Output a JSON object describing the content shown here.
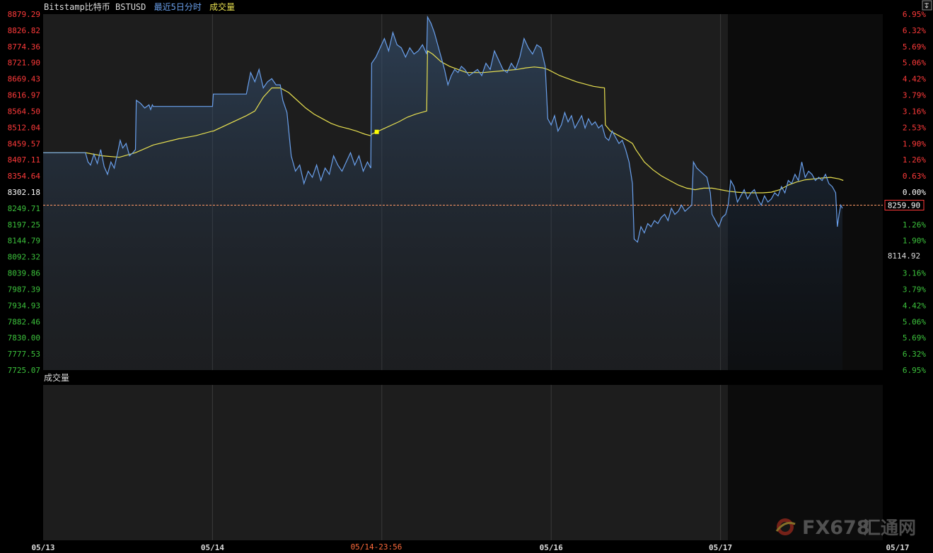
{
  "header": {
    "symbol_label": "Bitstamp比特币 BSTUSD",
    "period_label": "最近5日分时",
    "indicator_label": "成交量"
  },
  "volume_panel": {
    "title": "成交量"
  },
  "current_price_tag": "8259.90",
  "low_marker_label": "8114.92",
  "crosshair_time_label": "05/14-23:56",
  "watermark": {
    "brand": "FX678",
    "site": "汇通网"
  },
  "colors": {
    "up": "#ff3a3a",
    "down": "#3cc23c",
    "neutral": "#ffffff",
    "price_line": "#6aa0ec",
    "avg_line": "#e8e050",
    "ref_line": "#ff9966",
    "marker": "#ffff00"
  },
  "chart_data": {
    "type": "line",
    "title": "Bitstamp比特币 BSTUSD",
    "y_axis_left": [
      "8879.29",
      "8826.82",
      "8774.36",
      "8721.90",
      "8669.43",
      "8616.97",
      "8564.50",
      "8512.04",
      "8459.57",
      "8407.11",
      "8354.64",
      "8302.18",
      "8249.71",
      "8197.25",
      "8144.79",
      "8092.32",
      "8039.86",
      "7987.39",
      "7934.93",
      "7882.46",
      "7830.00",
      "7777.53",
      "7725.07"
    ],
    "y_axis_right": [
      "6.95%",
      "6.32%",
      "5.69%",
      "5.06%",
      "4.42%",
      "3.79%",
      "3.16%",
      "2.53%",
      "1.90%",
      "1.26%",
      "0.63%",
      "0.00%",
      "",
      "1.26%",
      "1.90%",
      "",
      "3.16%",
      "3.79%",
      "4.42%",
      "5.06%",
      "5.69%",
      "6.32%",
      "6.95%"
    ],
    "ylim": [
      7725.07,
      8879.29
    ],
    "reference_price": 8302.18,
    "current_price": 8259.9,
    "x_ticks": [
      "05/13",
      "05/14",
      "05/16",
      "05/17",
      "05/17"
    ],
    "series": [
      {
        "name": "price",
        "points": [
          [
            0.0,
            8430
          ],
          [
            5.0,
            8430
          ],
          [
            5.3,
            8400
          ],
          [
            5.6,
            8390
          ],
          [
            6.0,
            8425
          ],
          [
            6.4,
            8395
          ],
          [
            6.8,
            8440
          ],
          [
            7.2,
            8385
          ],
          [
            7.6,
            8360
          ],
          [
            8.0,
            8400
          ],
          [
            8.4,
            8380
          ],
          [
            8.8,
            8430
          ],
          [
            9.1,
            8470
          ],
          [
            9.4,
            8445
          ],
          [
            9.8,
            8460
          ],
          [
            10.2,
            8420
          ],
          [
            10.6,
            8430
          ],
          [
            10.9,
            8440
          ],
          [
            11.0,
            8600
          ],
          [
            11.5,
            8590
          ],
          [
            12.0,
            8575
          ],
          [
            12.5,
            8585
          ],
          [
            12.7,
            8570
          ],
          [
            12.9,
            8585
          ],
          [
            13.0,
            8580
          ],
          [
            20.0,
            8580
          ],
          [
            20.1,
            8620
          ],
          [
            24.0,
            8620
          ],
          [
            24.5,
            8690
          ],
          [
            25.0,
            8660
          ],
          [
            25.5,
            8700
          ],
          [
            26.0,
            8640
          ],
          [
            26.5,
            8660
          ],
          [
            27.0,
            8670
          ],
          [
            27.5,
            8650
          ],
          [
            28.0,
            8650
          ],
          [
            28.3,
            8600
          ],
          [
            28.8,
            8560
          ],
          [
            29.3,
            8420
          ],
          [
            29.8,
            8370
          ],
          [
            30.3,
            8390
          ],
          [
            30.8,
            8330
          ],
          [
            31.3,
            8370
          ],
          [
            31.8,
            8350
          ],
          [
            32.3,
            8390
          ],
          [
            32.8,
            8340
          ],
          [
            33.3,
            8380
          ],
          [
            33.8,
            8360
          ],
          [
            34.3,
            8420
          ],
          [
            34.8,
            8390
          ],
          [
            35.3,
            8370
          ],
          [
            35.8,
            8400
          ],
          [
            36.3,
            8430
          ],
          [
            36.8,
            8390
          ],
          [
            37.3,
            8420
          ],
          [
            37.8,
            8370
          ],
          [
            38.3,
            8400
          ],
          [
            38.7,
            8380
          ],
          [
            38.8,
            8720
          ],
          [
            39.3,
            8740
          ],
          [
            39.8,
            8770
          ],
          [
            40.3,
            8800
          ],
          [
            40.8,
            8760
          ],
          [
            41.3,
            8820
          ],
          [
            41.8,
            8780
          ],
          [
            42.3,
            8770
          ],
          [
            42.8,
            8740
          ],
          [
            43.3,
            8770
          ],
          [
            43.8,
            8750
          ],
          [
            44.3,
            8760
          ],
          [
            44.8,
            8780
          ],
          [
            45.3,
            8750
          ],
          [
            45.4,
            8870
          ],
          [
            45.8,
            8850
          ],
          [
            46.2,
            8820
          ],
          [
            46.6,
            8780
          ],
          [
            47.0,
            8740
          ],
          [
            47.4,
            8700
          ],
          [
            47.8,
            8650
          ],
          [
            48.2,
            8680
          ],
          [
            48.6,
            8700
          ],
          [
            49.0,
            8690
          ],
          [
            49.4,
            8710
          ],
          [
            49.8,
            8700
          ],
          [
            50.3,
            8680
          ],
          [
            50.8,
            8690
          ],
          [
            51.3,
            8700
          ],
          [
            51.8,
            8680
          ],
          [
            52.3,
            8720
          ],
          [
            52.8,
            8700
          ],
          [
            53.3,
            8760
          ],
          [
            53.8,
            8730
          ],
          [
            54.3,
            8700
          ],
          [
            54.8,
            8690
          ],
          [
            55.3,
            8720
          ],
          [
            55.8,
            8700
          ],
          [
            56.3,
            8740
          ],
          [
            56.8,
            8800
          ],
          [
            57.3,
            8770
          ],
          [
            57.8,
            8750
          ],
          [
            58.3,
            8780
          ],
          [
            58.8,
            8770
          ],
          [
            59.3,
            8710
          ],
          [
            59.6,
            8540
          ],
          [
            60.0,
            8520
          ],
          [
            60.4,
            8550
          ],
          [
            60.8,
            8500
          ],
          [
            61.2,
            8520
          ],
          [
            61.6,
            8560
          ],
          [
            62.0,
            8530
          ],
          [
            62.4,
            8550
          ],
          [
            62.8,
            8510
          ],
          [
            63.2,
            8530
          ],
          [
            63.6,
            8550
          ],
          [
            64.0,
            8510
          ],
          [
            64.4,
            8540
          ],
          [
            64.8,
            8520
          ],
          [
            65.2,
            8530
          ],
          [
            65.6,
            8510
          ],
          [
            66.0,
            8520
          ],
          [
            66.4,
            8480
          ],
          [
            66.8,
            8470
          ],
          [
            67.2,
            8500
          ],
          [
            67.6,
            8480
          ],
          [
            68.0,
            8460
          ],
          [
            68.4,
            8470
          ],
          [
            68.8,
            8440
          ],
          [
            69.2,
            8400
          ],
          [
            69.6,
            8330
          ],
          [
            69.8,
            8150
          ],
          [
            70.2,
            8140
          ],
          [
            70.6,
            8190
          ],
          [
            71.0,
            8170
          ],
          [
            71.4,
            8200
          ],
          [
            71.8,
            8190
          ],
          [
            72.2,
            8210
          ],
          [
            72.6,
            8200
          ],
          [
            73.0,
            8220
          ],
          [
            73.4,
            8230
          ],
          [
            73.8,
            8210
          ],
          [
            74.2,
            8250
          ],
          [
            74.6,
            8230
          ],
          [
            75.0,
            8240
          ],
          [
            75.4,
            8260
          ],
          [
            75.8,
            8240
          ],
          [
            76.2,
            8250
          ],
          [
            76.6,
            8260
          ],
          [
            76.8,
            8400
          ],
          [
            77.2,
            8380
          ],
          [
            77.6,
            8370
          ],
          [
            78.0,
            8360
          ],
          [
            78.4,
            8350
          ],
          [
            78.8,
            8300
          ],
          [
            79.0,
            8230
          ],
          [
            79.4,
            8210
          ],
          [
            79.8,
            8190
          ],
          [
            80.2,
            8220
          ],
          [
            80.6,
            8230
          ],
          [
            80.9,
            8260
          ],
          [
            81.2,
            8340
          ],
          [
            81.6,
            8320
          ],
          [
            82.0,
            8270
          ],
          [
            82.4,
            8290
          ],
          [
            82.8,
            8310
          ],
          [
            83.2,
            8280
          ],
          [
            83.6,
            8300
          ],
          [
            84.0,
            8310
          ],
          [
            84.4,
            8280
          ],
          [
            84.8,
            8260
          ],
          [
            85.2,
            8290
          ],
          [
            85.6,
            8270
          ],
          [
            86.0,
            8280
          ],
          [
            86.4,
            8300
          ],
          [
            86.8,
            8290
          ],
          [
            87.2,
            8320
          ],
          [
            87.6,
            8300
          ],
          [
            88.0,
            8340
          ],
          [
            88.4,
            8330
          ],
          [
            88.8,
            8360
          ],
          [
            89.2,
            8340
          ],
          [
            89.6,
            8400
          ],
          [
            90.0,
            8350
          ],
          [
            90.4,
            8370
          ],
          [
            90.8,
            8360
          ],
          [
            91.2,
            8340
          ],
          [
            91.6,
            8350
          ],
          [
            92.0,
            8340
          ],
          [
            92.4,
            8360
          ],
          [
            92.8,
            8330
          ],
          [
            93.2,
            8320
          ],
          [
            93.6,
            8300
          ],
          [
            93.8,
            8190
          ],
          [
            94.0,
            8230
          ],
          [
            94.2,
            8260
          ],
          [
            94.4,
            8250
          ]
        ]
      },
      {
        "name": "average",
        "points": [
          [
            0.0,
            8430
          ],
          [
            5.0,
            8430
          ],
          [
            7.0,
            8420
          ],
          [
            9.0,
            8415
          ],
          [
            10.9,
            8430
          ],
          [
            13.0,
            8455
          ],
          [
            16.0,
            8475
          ],
          [
            18.0,
            8485
          ],
          [
            20.0,
            8500
          ],
          [
            20.1,
            8500
          ],
          [
            24.0,
            8550
          ],
          [
            25.0,
            8565
          ],
          [
            26.0,
            8610
          ],
          [
            27.0,
            8640
          ],
          [
            28.0,
            8640
          ],
          [
            29.0,
            8625
          ],
          [
            30.0,
            8600
          ],
          [
            31.0,
            8575
          ],
          [
            32.0,
            8555
          ],
          [
            33.0,
            8540
          ],
          [
            34.0,
            8525
          ],
          [
            35.0,
            8515
          ],
          [
            36.0,
            8508
          ],
          [
            37.0,
            8500
          ],
          [
            38.0,
            8490
          ],
          [
            38.7,
            8485
          ],
          [
            38.8,
            8490
          ],
          [
            40.0,
            8505
          ],
          [
            42.0,
            8530
          ],
          [
            43.0,
            8545
          ],
          [
            44.0,
            8555
          ],
          [
            45.3,
            8565
          ],
          [
            45.4,
            8760
          ],
          [
            46.0,
            8750
          ],
          [
            47.0,
            8725
          ],
          [
            48.0,
            8710
          ],
          [
            49.0,
            8700
          ],
          [
            50.0,
            8690
          ],
          [
            51.0,
            8690
          ],
          [
            52.0,
            8690
          ],
          [
            54.0,
            8695
          ],
          [
            56.0,
            8700
          ],
          [
            57.0,
            8705
          ],
          [
            58.0,
            8708
          ],
          [
            59.0,
            8705
          ],
          [
            59.6,
            8700
          ],
          [
            61.0,
            8680
          ],
          [
            63.0,
            8660
          ],
          [
            65.0,
            8645
          ],
          [
            66.3,
            8640
          ],
          [
            66.4,
            8520
          ],
          [
            67.0,
            8500
          ],
          [
            68.0,
            8485
          ],
          [
            69.0,
            8470
          ],
          [
            69.6,
            8460
          ],
          [
            70.0,
            8440
          ],
          [
            71.0,
            8400
          ],
          [
            72.0,
            8375
          ],
          [
            73.0,
            8355
          ],
          [
            74.0,
            8340
          ],
          [
            75.0,
            8325
          ],
          [
            76.0,
            8315
          ],
          [
            77.0,
            8310
          ],
          [
            78.0,
            8315
          ],
          [
            79.0,
            8315
          ],
          [
            80.0,
            8310
          ],
          [
            81.0,
            8305
          ],
          [
            82.0,
            8302
          ],
          [
            83.0,
            8300
          ],
          [
            84.0,
            8300
          ],
          [
            85.0,
            8300
          ],
          [
            86.0,
            8302
          ],
          [
            87.0,
            8310
          ],
          [
            88.0,
            8325
          ],
          [
            89.0,
            8335
          ],
          [
            90.0,
            8342
          ],
          [
            91.0,
            8345
          ],
          [
            92.0,
            8348
          ],
          [
            93.0,
            8350
          ],
          [
            94.0,
            8345
          ],
          [
            94.5,
            8340
          ]
        ]
      }
    ],
    "legend": "none",
    "grid": false
  }
}
